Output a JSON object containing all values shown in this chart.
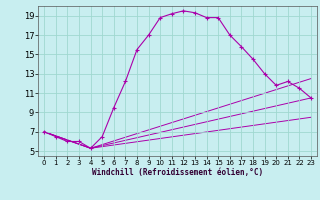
{
  "xlabel": "Windchill (Refroidissement éolien,°C)",
  "background_color": "#c8eef0",
  "line_color": "#aa00aa",
  "xlim": [
    -0.5,
    23.5
  ],
  "ylim": [
    4.5,
    20.0
  ],
  "xticks": [
    0,
    1,
    2,
    3,
    4,
    5,
    6,
    7,
    8,
    9,
    10,
    11,
    12,
    13,
    14,
    15,
    16,
    17,
    18,
    19,
    20,
    21,
    22,
    23
  ],
  "yticks": [
    5,
    7,
    9,
    11,
    13,
    15,
    17,
    19
  ],
  "grid_color": "#a0d8d0",
  "main_series": {
    "x": [
      0,
      1,
      2,
      3,
      4,
      5,
      6,
      7,
      8,
      9,
      10,
      11,
      12,
      13,
      14,
      15,
      16,
      17,
      18,
      19,
      20,
      21,
      22,
      23
    ],
    "y": [
      7.0,
      6.5,
      6.0,
      6.0,
      5.3,
      6.5,
      9.5,
      12.2,
      15.5,
      17.0,
      18.8,
      19.2,
      19.5,
      19.3,
      18.8,
      18.8,
      17.0,
      15.8,
      14.5,
      13.0,
      11.8,
      12.2,
      11.5,
      10.5
    ]
  },
  "fan_lines": [
    {
      "x": [
        0,
        4,
        23
      ],
      "y": [
        7.0,
        5.3,
        12.5
      ]
    },
    {
      "x": [
        0,
        4,
        23
      ],
      "y": [
        7.0,
        5.3,
        10.5
      ]
    },
    {
      "x": [
        0,
        4,
        23
      ],
      "y": [
        7.0,
        5.3,
        8.5
      ]
    }
  ]
}
